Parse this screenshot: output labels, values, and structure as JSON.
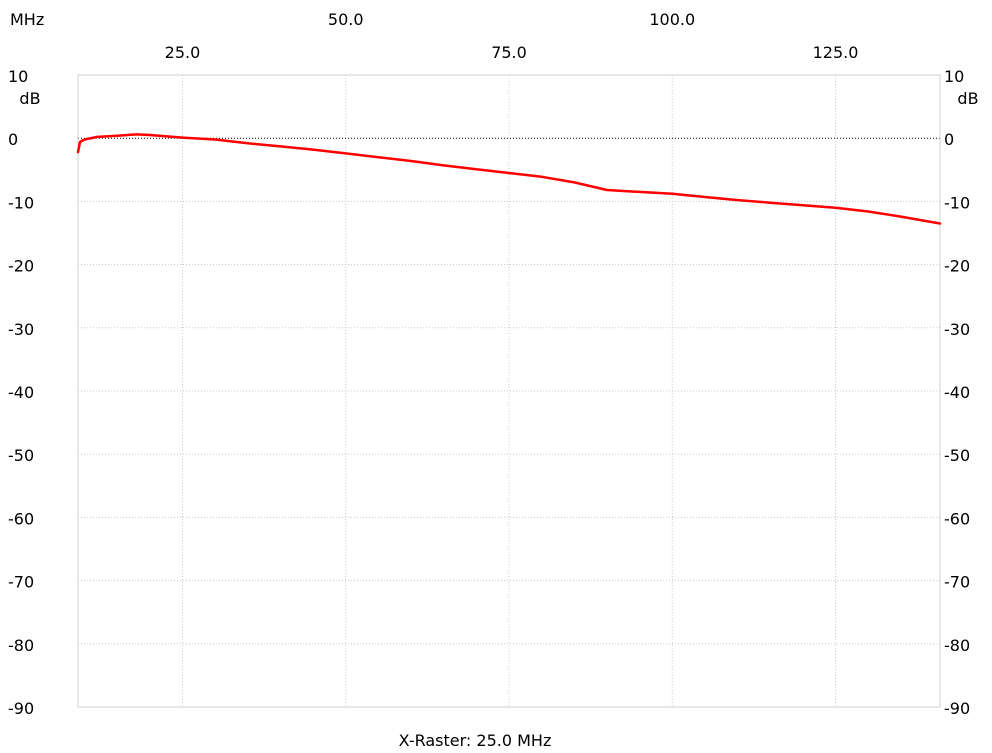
{
  "chart_data": {
    "type": "line",
    "x_unit_label": "MHz",
    "y_unit_label": "dB",
    "x_range": [
      9,
      141
    ],
    "ylim": [
      -90,
      10
    ],
    "grid": true,
    "x_ticks_top_row": [
      "50.0",
      "100.0"
    ],
    "x_ticks_bottom_row": [
      "25.0",
      "75.0",
      "125.0"
    ],
    "x_tick_values_top_row": [
      50,
      100
    ],
    "x_tick_values_bottom_row": [
      25,
      75,
      125
    ],
    "y_ticks": [
      10,
      0,
      -10,
      -20,
      -30,
      -40,
      -50,
      -60,
      -70,
      -80,
      -90
    ],
    "y_tick_labels": [
      "10",
      "0",
      "-10",
      "-20",
      "-30",
      "-40",
      "-50",
      "-60",
      "-70",
      "-80",
      "-90"
    ],
    "footer": "X-Raster: 25.0 MHz",
    "reference_line_y": 0,
    "series": [
      {
        "color": "#ff0000",
        "x": [
          9,
          9.3,
          10,
          12,
          15,
          18,
          20,
          25,
          30,
          35,
          40,
          45,
          50,
          55,
          60,
          65,
          70,
          75,
          80,
          85,
          90,
          95,
          100,
          105,
          110,
          115,
          120,
          125,
          130,
          135,
          141
        ],
        "y": [
          -2.2,
          -0.6,
          -0.2,
          0.2,
          0.4,
          0.6,
          0.5,
          0.1,
          -0.2,
          -0.8,
          -1.3,
          -1.8,
          -2.4,
          -3.0,
          -3.6,
          -4.3,
          -4.9,
          -5.5,
          -6.1,
          -7.0,
          -8.2,
          -8.5,
          -8.8,
          -9.3,
          -9.8,
          -10.2,
          -10.6,
          -11.0,
          -11.6,
          -12.4,
          -13.5
        ]
      }
    ]
  }
}
